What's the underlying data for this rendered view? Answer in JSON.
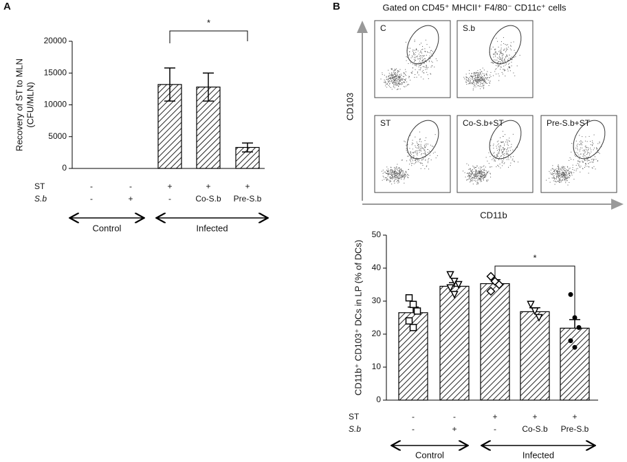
{
  "chart_data": [
    {
      "type": "bar",
      "panel_label": "A",
      "ylabel": [
        "Recovery of ST to MLN",
        "(CFU/MLN)"
      ],
      "categories": [
        null,
        null,
        null,
        null,
        null
      ],
      "values": [
        0,
        0,
        13200,
        12800,
        3300
      ],
      "errors": [
        null,
        null,
        2600,
        2200,
        700
      ],
      "ylim": [
        0,
        20000
      ],
      "yticks": [
        0,
        5000,
        10000,
        15000,
        20000
      ],
      "rows": [
        {
          "name": "ST",
          "values": [
            "-",
            "-",
            "+",
            "+",
            "+"
          ]
        },
        {
          "name": "S.b",
          "values": [
            "-",
            "+",
            "-",
            "Co-S.b",
            "Pre-S.b"
          ]
        }
      ],
      "groups": [
        "Control",
        "Infected"
      ],
      "annotation": "*"
    },
    {
      "type": "bar",
      "panel_label": "B",
      "title": "Gated on CD45⁺ MHCII⁺ F4/80⁻ CD11c⁺ cells",
      "flow_plots": [
        "C",
        "S.b",
        "ST",
        "Co-S.b+ST",
        "Pre-S.b+ST"
      ],
      "flow_ylabel": "CD103",
      "flow_xlabel": "CD11b",
      "ylabel": [
        "CD11b⁺ CD103⁺ DCs in LP (% of DCs)"
      ],
      "categories": [
        null,
        null,
        null,
        null,
        null
      ],
      "values": [
        26.5,
        34.5,
        35.3,
        26.8,
        21.8
      ],
      "errors": [
        1.7,
        1.1,
        1.2,
        1.2,
        2.6
      ],
      "points": [
        [
          31,
          29,
          27,
          24,
          22
        ],
        [
          38,
          36,
          35,
          34,
          32
        ],
        [
          37.5,
          36,
          35,
          33
        ],
        [
          29,
          27,
          25
        ],
        [
          32,
          25,
          22,
          18,
          16
        ]
      ],
      "markers": [
        "square",
        "triangle-down",
        "diamond",
        "triangle-down",
        "circle"
      ],
      "ylim": [
        0,
        50
      ],
      "yticks": [
        0,
        10,
        20,
        30,
        40,
        50
      ],
      "rows": [
        {
          "name": "ST",
          "values": [
            "-",
            "-",
            "+",
            "+",
            "+"
          ]
        },
        {
          "name": "S.b",
          "values": [
            "-",
            "+",
            "-",
            "Co-S.b",
            "Pre-S.b"
          ]
        }
      ],
      "groups": [
        "Control",
        "Infected"
      ],
      "annotation": "*"
    }
  ]
}
